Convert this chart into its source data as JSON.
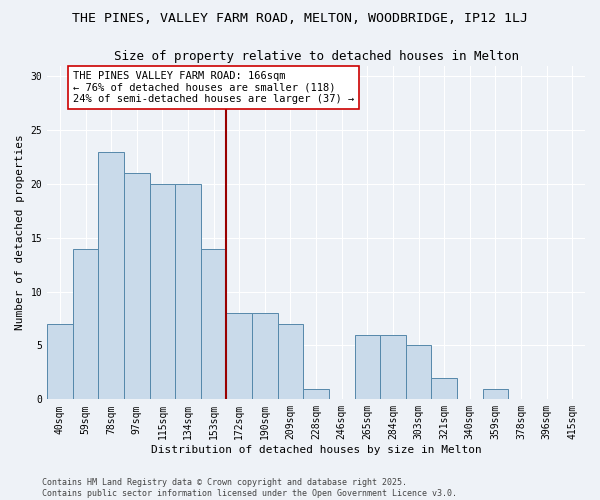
{
  "title": "THE PINES, VALLEY FARM ROAD, MELTON, WOODBRIDGE, IP12 1LJ",
  "subtitle": "Size of property relative to detached houses in Melton",
  "xlabel": "Distribution of detached houses by size in Melton",
  "ylabel": "Number of detached properties",
  "bar_labels": [
    "40sqm",
    "59sqm",
    "78sqm",
    "97sqm",
    "115sqm",
    "134sqm",
    "153sqm",
    "172sqm",
    "190sqm",
    "209sqm",
    "228sqm",
    "246sqm",
    "265sqm",
    "284sqm",
    "303sqm",
    "321sqm",
    "340sqm",
    "359sqm",
    "378sqm",
    "396sqm",
    "415sqm"
  ],
  "bar_values": [
    7,
    14,
    23,
    21,
    20,
    20,
    14,
    8,
    8,
    7,
    1,
    0,
    6,
    6,
    5,
    2,
    0,
    1,
    0,
    0,
    0
  ],
  "bar_color": "#c9daea",
  "bar_edge_color": "#5588aa",
  "background_color": "#eef2f7",
  "grid_color": "#ffffff",
  "annotation_line_idx": 7,
  "annotation_line_color": "#990000",
  "annotation_text": "THE PINES VALLEY FARM ROAD: 166sqm\n← 76% of detached houses are smaller (118)\n24% of semi-detached houses are larger (37) →",
  "annotation_box_facecolor": "#ffffff",
  "annotation_box_edgecolor": "#cc0000",
  "ylim": [
    0,
    31
  ],
  "yticks": [
    0,
    5,
    10,
    15,
    20,
    25,
    30
  ],
  "footer": "Contains HM Land Registry data © Crown copyright and database right 2025.\nContains public sector information licensed under the Open Government Licence v3.0.",
  "title_fontsize": 9.5,
  "subtitle_fontsize": 9,
  "ylabel_fontsize": 8,
  "xlabel_fontsize": 8,
  "tick_fontsize": 7,
  "annotation_fontsize": 7.5,
  "footer_fontsize": 6
}
